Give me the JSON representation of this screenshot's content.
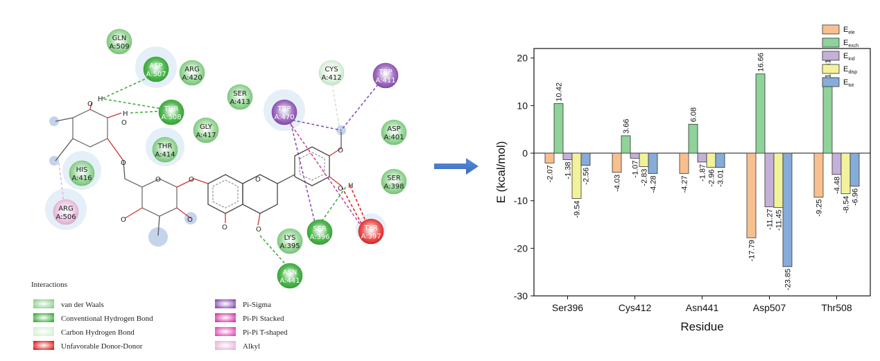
{
  "diagram": {
    "interactions_title": "Interactions",
    "legend": [
      {
        "label": "van der Waals",
        "color": "#8fd08f"
      },
      {
        "label": "Conventional Hydrogen Bond",
        "color": "#3fae3f"
      },
      {
        "label": "Carbon Hydrogen Bond",
        "color": "#d6efd6"
      },
      {
        "label": "Unfavorable Donor-Donor",
        "color": "#e02020"
      },
      {
        "label": "Pi-Sigma",
        "color": "#8a4fb0"
      },
      {
        "label": "Pi-Pi Stacked",
        "color": "#d63ca6"
      },
      {
        "label": "Pi-Pi T-shaped",
        "color": "#e04db5"
      },
      {
        "label": "Alkyl",
        "color": "#e8b5d8"
      }
    ],
    "residues": [
      {
        "name": "GLN",
        "id": "A:509",
        "kind": "vdw"
      },
      {
        "name": "ASP",
        "id": "A:507",
        "kind": "hbond"
      },
      {
        "name": "ARG",
        "id": "A:420",
        "kind": "vdw"
      },
      {
        "name": "THR",
        "id": "A:508",
        "kind": "hbond"
      },
      {
        "name": "SER",
        "id": "A:413",
        "kind": "vdw"
      },
      {
        "name": "GLY",
        "id": "A:417",
        "kind": "vdw"
      },
      {
        "name": "THR",
        "id": "A:414",
        "kind": "vdw"
      },
      {
        "name": "HIS",
        "id": "A:416",
        "kind": "vdw"
      },
      {
        "name": "ARG",
        "id": "A:506",
        "kind": "alkyl"
      },
      {
        "name": "CYS",
        "id": "A:412",
        "kind": "chbond"
      },
      {
        "name": "TRP",
        "id": "A:411",
        "kind": "pisigma"
      },
      {
        "name": "TRP",
        "id": "A:470",
        "kind": "pisigma"
      },
      {
        "name": "ASP",
        "id": "A:401",
        "kind": "vdw"
      },
      {
        "name": "SER",
        "id": "A:398",
        "kind": "vdw"
      },
      {
        "name": "LYS",
        "id": "A:395",
        "kind": "vdw"
      },
      {
        "name": "SER",
        "id": "A:396",
        "kind": "hbond"
      },
      {
        "name": "TYR",
        "id": "A:397",
        "kind": "unfav"
      },
      {
        "name": "ASN",
        "id": "A:441",
        "kind": "hbond"
      }
    ],
    "atom_H": "H",
    "atom_O": "O"
  },
  "chart_data": {
    "type": "bar",
    "categories": [
      "Ser396",
      "Cys412",
      "Asn441",
      "Asp507",
      "Thr508"
    ],
    "series": [
      {
        "name": "E",
        "sub": "ele",
        "color": "#f8c08e",
        "values": [
          -2.07,
          -4.03,
          -4.27,
          -17.79,
          -9.25
        ]
      },
      {
        "name": "E",
        "sub": "exch",
        "color": "#8fd29a",
        "values": [
          10.42,
          3.66,
          6.08,
          16.66,
          15.31
        ]
      },
      {
        "name": "E",
        "sub": "ind",
        "color": "#c5b0d9",
        "values": [
          -1.38,
          -1.07,
          -1.87,
          -11.27,
          -4.48
        ]
      },
      {
        "name": "E",
        "sub": "disp",
        "color": "#f2f29c",
        "values": [
          -9.54,
          -2.83,
          -2.96,
          -11.45,
          -8.54
        ]
      },
      {
        "name": "E",
        "sub": "tot",
        "color": "#86acd9",
        "values": [
          -2.56,
          -4.28,
          -3.01,
          -23.85,
          -6.96
        ]
      }
    ],
    "xlabel": "Residue",
    "ylabel": "E (kcal/mol)",
    "ylim": [
      -30,
      22
    ],
    "yticks": [
      20,
      10,
      0,
      -10,
      -20,
      -30
    ],
    "legend_position": "top-right"
  }
}
